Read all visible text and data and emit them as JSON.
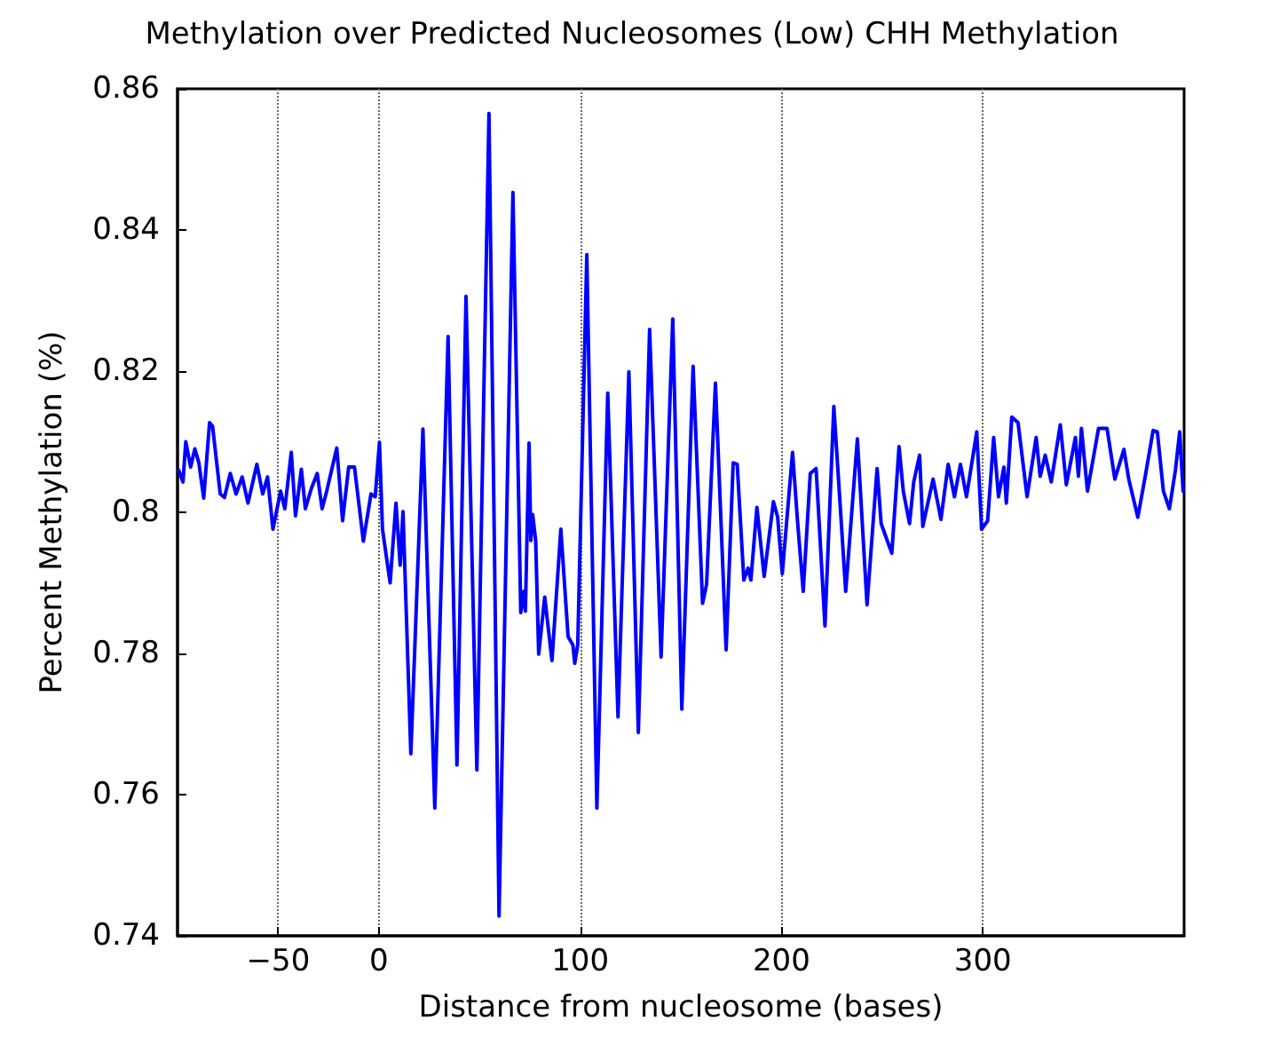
{
  "chart_data": {
    "type": "line",
    "title": "Methylation over Predicted Nucleosomes (Low) CHH Methylation",
    "xlabel": "Distance from nucleosome (bases)",
    "ylabel": "Percent Methylation (%)",
    "xlim": [
      -100,
      400
    ],
    "xticks": [
      -50,
      0,
      100,
      200,
      300
    ],
    "ylim": [
      0.74,
      0.86
    ],
    "yticks": [
      0.74,
      0.76,
      0.78,
      0.8,
      0.82,
      0.84,
      0.86
    ],
    "grid": "x",
    "marker": "none",
    "line_style": "solid",
    "x": [
      -99.5,
      -97.3,
      -95.9,
      -93.5,
      -91.4,
      -89.4,
      -87,
      -84.1,
      -82.6,
      -78.8,
      -76.7,
      -73.8,
      -70.9,
      -67.9,
      -65,
      -60.6,
      -57.7,
      -55.3,
      -52.6,
      -48.8,
      -46.7,
      -43.5,
      -41.4,
      -38.5,
      -36.5,
      -33.5,
      -30.6,
      -28.2,
      -25.9,
      -20.9,
      -18,
      -15,
      -12.1,
      -7.7,
      -3.9,
      -1.8,
      0.3,
      1.8,
      5.6,
      8.5,
      10.6,
      12,
      15.9,
      21.9,
      27.8,
      34.4,
      38.8,
      43.3,
      48.7,
      54.7,
      59.7,
      66.6,
      70.5,
      72,
      72.8,
      74.6,
      75.5,
      76.4,
      77.9,
      79.4,
      82.4,
      86,
      90.4,
      94,
      96.4,
      97.3,
      98.8,
      103.3,
      108.3,
      113.7,
      118.8,
      124.2,
      128.9,
      134.5,
      140.2,
      146,
      150.5,
      156.1,
      160.8,
      162.8,
      167.2,
      172.5,
      176,
      178,
      181.3,
      183.4,
      184.8,
      187.8,
      191.4,
      196,
      198.1,
      200.4,
      205.5,
      207.9,
      210.8,
      214.3,
      217.2,
      221.6,
      226,
      231.9,
      237.7,
      242.5,
      247.5,
      249.5,
      254.8,
      258.4,
      260.5,
      263.6,
      265.7,
      268.6,
      270.2,
      275.3,
      279.2,
      282.8,
      285.9,
      288.9,
      291.9,
      297,
      299.4,
      302.4,
      305.4,
      307.8,
      310.5,
      311.7,
      314.4,
      317.5,
      322,
      326.5,
      328.5,
      331,
      334,
      338.5,
      341.5,
      346,
      347.5,
      349,
      352,
      357.5,
      361.7,
      365.6,
      370.1,
      372.5,
      377,
      380.7,
      384.6,
      386.7,
      389.7,
      392.7,
      395.7,
      397.8,
      399.5
    ],
    "series": [
      {
        "color": "#0000ff",
        "values": [
          0.806,
          0.8043,
          0.81,
          0.8064,
          0.809,
          0.807,
          0.802,
          0.8127,
          0.8122,
          0.8026,
          0.8021,
          0.8055,
          0.8026,
          0.805,
          0.8013,
          0.8068,
          0.8026,
          0.805,
          0.7976,
          0.803,
          0.8005,
          0.8085,
          0.7995,
          0.8061,
          0.8005,
          0.8034,
          0.8055,
          0.8005,
          0.803,
          0.8091,
          0.7988,
          0.8064,
          0.8064,
          0.7959,
          0.8026,
          0.8022,
          0.8099,
          0.7976,
          0.79,
          0.8013,
          0.7925,
          0.8001,
          0.7658,
          0.8118,
          0.7581,
          0.8249,
          0.7642,
          0.8306,
          0.7635,
          0.8565,
          0.7428,
          0.8453,
          0.7858,
          0.7888,
          0.786,
          0.8098,
          0.796,
          0.7997,
          0.796,
          0.7799,
          0.788,
          0.779,
          0.7976,
          0.7824,
          0.7812,
          0.7786,
          0.7812,
          0.8365,
          0.7581,
          0.8169,
          0.771,
          0.8199,
          0.7688,
          0.8259,
          0.7795,
          0.8274,
          0.7721,
          0.8207,
          0.7871,
          0.7898,
          0.8183,
          0.7805,
          0.807,
          0.8068,
          0.7904,
          0.7921,
          0.7904,
          0.8007,
          0.7909,
          0.8015,
          0.7993,
          0.7913,
          0.8085,
          0.799,
          0.7888,
          0.8055,
          0.8062,
          0.7839,
          0.815,
          0.7888,
          0.8104,
          0.7869,
          0.8062,
          0.7984,
          0.7942,
          0.8093,
          0.803,
          0.7984,
          0.8043,
          0.8081,
          0.798,
          0.8047,
          0.799,
          0.8068,
          0.8022,
          0.8068,
          0.8022,
          0.8114,
          0.7976,
          0.7988,
          0.8106,
          0.8022,
          0.8064,
          0.8013,
          0.8135,
          0.8127,
          0.8022,
          0.8106,
          0.8051,
          0.8081,
          0.8043,
          0.8124,
          0.8039,
          0.8106,
          0.8051,
          0.8119,
          0.803,
          0.8119,
          0.8119,
          0.8047,
          0.8089,
          0.8047,
          0.7993,
          0.8051,
          0.8116,
          0.8114,
          0.803,
          0.8005,
          0.806,
          0.8114,
          0.803
        ]
      }
    ]
  }
}
